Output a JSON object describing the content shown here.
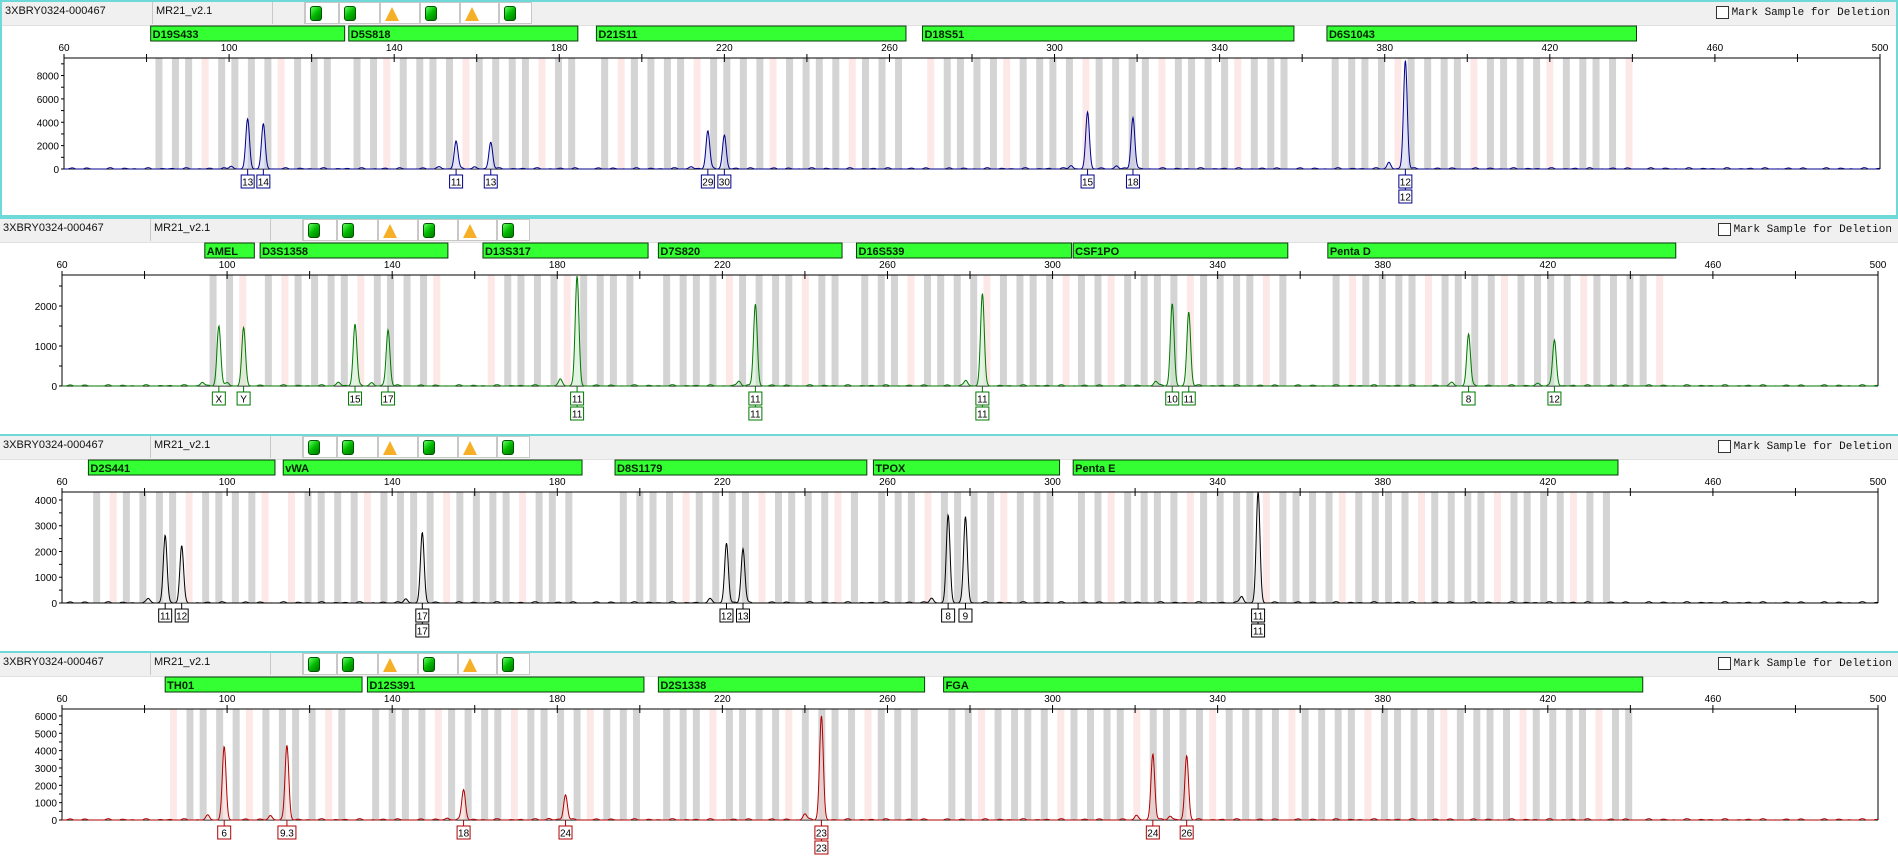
{
  "mark_label": "Mark Sample for Deletion",
  "x_axis": {
    "min": 60,
    "max": 500,
    "labels": [
      60,
      100,
      140,
      180,
      220,
      260,
      300,
      340,
      380,
      420,
      460,
      500
    ]
  },
  "status_icons": [
    "green-square",
    "green-square",
    "warning-triangle",
    "green-square",
    "warning-triangle",
    "green-square"
  ],
  "colors": {
    "marker_bar": "#33ff33",
    "bin": "#d4d4d4",
    "virtual_bin": "#fde8e8"
  },
  "panels": [
    {
      "sample": "3XBRY0324-000467",
      "kit": "MR21_v2.1",
      "color": "#00008b",
      "fill": "#c8ccf0",
      "ylim": [
        0,
        9500
      ],
      "yticks": [
        0,
        2000,
        4000,
        6000,
        8000
      ],
      "markers": [
        {
          "name": "D19S433",
          "start": 81,
          "end": 128
        },
        {
          "name": "D5S818",
          "start": 129,
          "end": 184.5
        },
        {
          "name": "D21S11",
          "start": 189,
          "end": 264
        },
        {
          "name": "D18S51",
          "start": 268,
          "end": 358
        },
        {
          "name": "D6S1043",
          "start": 366,
          "end": 441
        }
      ],
      "peaks": [
        {
          "bp": 104.5,
          "height": 4000,
          "alleles": [
            "13"
          ]
        },
        {
          "bp": 108.3,
          "height": 3800,
          "alleles": [
            "14"
          ]
        },
        {
          "bp": 155,
          "height": 2400,
          "alleles": [
            "11"
          ]
        },
        {
          "bp": 163.4,
          "height": 2300,
          "alleles": [
            "13"
          ]
        },
        {
          "bp": 216,
          "height": 3100,
          "alleles": [
            "29"
          ]
        },
        {
          "bp": 220,
          "height": 2900,
          "alleles": [
            "30"
          ]
        },
        {
          "bp": 308,
          "height": 4800,
          "alleles": [
            "15"
          ]
        },
        {
          "bp": 319,
          "height": 4400,
          "alleles": [
            "18"
          ]
        },
        {
          "bp": 385,
          "height": 9300,
          "alleles": [
            "12",
            "12"
          ]
        }
      ]
    },
    {
      "sample": "3XBRY0324-000467",
      "kit": "MR21_v2.1",
      "color": "#007700",
      "fill": "#c6ecc6",
      "ylim": [
        0,
        2775
      ],
      "yticks": [
        0,
        1000,
        2000
      ],
      "markers": [
        {
          "name": "AMEL",
          "start": 94.6,
          "end": 106.6
        },
        {
          "name": "D3S1358",
          "start": 108,
          "end": 153.5
        },
        {
          "name": "D13S317",
          "start": 162,
          "end": 202
        },
        {
          "name": "D7S820",
          "start": 204.5,
          "end": 249
        },
        {
          "name": "D16S539",
          "start": 252.5,
          "end": 304.6
        },
        {
          "name": "CSF1PO",
          "start": 305,
          "end": 357
        },
        {
          "name": "Penta D",
          "start": 366.7,
          "end": 451
        }
      ],
      "peaks": [
        {
          "bp": 98,
          "height": 1500,
          "alleles": [
            "X"
          ]
        },
        {
          "bp": 104,
          "height": 1450,
          "alleles": [
            "Y"
          ]
        },
        {
          "bp": 131,
          "height": 1550,
          "alleles": [
            "15"
          ]
        },
        {
          "bp": 139,
          "height": 1400,
          "alleles": [
            "17"
          ]
        },
        {
          "bp": 184.8,
          "height": 2750,
          "alleles": [
            "11",
            "11"
          ]
        },
        {
          "bp": 228,
          "height": 2050,
          "alleles": [
            "11",
            "11"
          ]
        },
        {
          "bp": 283,
          "height": 2300,
          "alleles": [
            "11",
            "11"
          ]
        },
        {
          "bp": 329,
          "height": 1950,
          "alleles": [
            "10"
          ]
        },
        {
          "bp": 333,
          "height": 1850,
          "alleles": [
            "11"
          ]
        },
        {
          "bp": 400.8,
          "height": 1300,
          "alleles": [
            "8"
          ]
        },
        {
          "bp": 421.6,
          "height": 1150,
          "alleles": [
            "12"
          ]
        }
      ]
    },
    {
      "sample": "3XBRY0324-000467",
      "kit": "MR21_v2.1",
      "color": "#000000",
      "fill": "#dddddd",
      "ylim": [
        0,
        4310
      ],
      "yticks": [
        0,
        1000,
        2000,
        3000,
        4000
      ],
      "markers": [
        {
          "name": "D2S441",
          "start": 66.4,
          "end": 111.6
        },
        {
          "name": "vWA",
          "start": 113.6,
          "end": 186
        },
        {
          "name": "D8S1179",
          "start": 194,
          "end": 255
        },
        {
          "name": "TPOX",
          "start": 256.6,
          "end": 301.7
        },
        {
          "name": "Penta E",
          "start": 305,
          "end": 437
        }
      ],
      "peaks": [
        {
          "bp": 85,
          "height": 2500,
          "alleles": [
            "11"
          ]
        },
        {
          "bp": 89,
          "height": 2200,
          "alleles": [
            "12"
          ]
        },
        {
          "bp": 147.3,
          "height": 2700,
          "alleles": [
            "17",
            "17"
          ]
        },
        {
          "bp": 221,
          "height": 2200,
          "alleles": [
            "12"
          ]
        },
        {
          "bp": 225,
          "height": 2100,
          "alleles": [
            "13"
          ]
        },
        {
          "bp": 274.7,
          "height": 3200,
          "alleles": [
            "8"
          ]
        },
        {
          "bp": 278.9,
          "height": 3350,
          "alleles": [
            "9"
          ]
        },
        {
          "bp": 349.8,
          "height": 4300,
          "alleles": [
            "11",
            "11"
          ]
        }
      ]
    },
    {
      "sample": "3XBRY0324-000467",
      "kit": "MR21_v2.1",
      "color": "#b00000",
      "fill": "#f5cccc",
      "ylim": [
        0,
        6400
      ],
      "yticks": [
        0,
        1000,
        2000,
        3000,
        4000,
        5000,
        6000
      ],
      "markers": [
        {
          "name": "TH01",
          "start": 85,
          "end": 132.7
        },
        {
          "name": "D12S391",
          "start": 134,
          "end": 201
        },
        {
          "name": "D2S1338",
          "start": 204.5,
          "end": 269
        },
        {
          "name": "FGA",
          "start": 273.6,
          "end": 443
        }
      ],
      "peaks": [
        {
          "bp": 99.3,
          "height": 4200,
          "alleles": [
            "6"
          ]
        },
        {
          "bp": 114.5,
          "height": 4300,
          "alleles": [
            "9.3"
          ]
        },
        {
          "bp": 157.3,
          "height": 1750,
          "alleles": [
            "18"
          ]
        },
        {
          "bp": 182,
          "height": 1450,
          "alleles": [
            "24"
          ]
        },
        {
          "bp": 244,
          "height": 6000,
          "alleles": [
            "23",
            "23"
          ]
        },
        {
          "bp": 324.3,
          "height": 3800,
          "alleles": [
            "24"
          ]
        },
        {
          "bp": 332.5,
          "height": 3700,
          "alleles": [
            "26"
          ]
        }
      ]
    }
  ]
}
